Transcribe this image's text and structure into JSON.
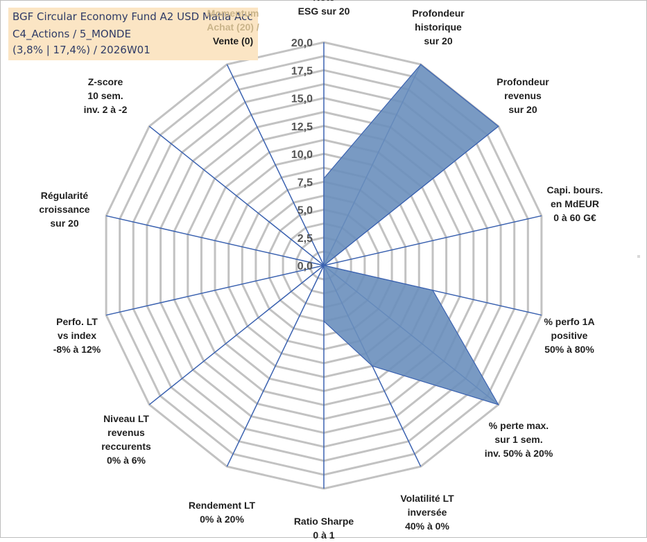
{
  "title": {
    "line1": "BGF Circular Economy Fund A2 USD Matla Acc",
    "line2": "C4_Actions / 5_MONDE",
    "line3": "(3,8% | 17,4%) / 2026W01"
  },
  "chart_data": {
    "type": "radar",
    "rmin": 0,
    "rmax": 20,
    "ticks": [
      "0,0",
      "2,5",
      "5,0",
      "7,5",
      "10,0",
      "12,5",
      "15,0",
      "17,5",
      "20,0"
    ],
    "tick_values": [
      0,
      2.5,
      5,
      7.5,
      10,
      12.5,
      15,
      17.5,
      20
    ],
    "grid_step": 1.25,
    "fill_color": "#6a8fbd",
    "stroke_color": "#3b62b0",
    "grid_color": "#c2c2c2",
    "spoke_color": "#3b62b0",
    "axes": [
      {
        "label_lines": [
          "Note",
          "ESG sur 20"
        ],
        "value": 7.8
      },
      {
        "label_lines": [
          "Profondeur",
          "historique",
          "sur 20"
        ],
        "value": 20
      },
      {
        "label_lines": [
          "Profondeur",
          "revenus",
          "sur 20"
        ],
        "value": 20
      },
      {
        "label_lines": [
          "Capi. bours.",
          "en MdEUR",
          "0 à 60 G€"
        ],
        "value": 0
      },
      {
        "label_lines": [
          "% perfo 1A",
          "positive",
          "50% à 80%"
        ],
        "value": 10
      },
      {
        "label_lines": [
          "% perte max.",
          "sur 1 sem.",
          "inv. 50% à 20%"
        ],
        "value": 20
      },
      {
        "label_lines": [
          "Volatilité LT",
          "inversée",
          "40% à 0%"
        ],
        "value": 10
      },
      {
        "label_lines": [
          "Ratio Sharpe",
          "0 à 1"
        ],
        "value": 5
      },
      {
        "label_lines": [
          "Rendement LT",
          "0% à 20%"
        ],
        "value": 0
      },
      {
        "label_lines": [
          "Niveau LT",
          "revenus",
          "reccurents",
          "0% à 6%"
        ],
        "value": 0
      },
      {
        "label_lines": [
          "Perfo. LT",
          "vs index",
          "-8% à 12%"
        ],
        "value": 0
      },
      {
        "label_lines": [
          "Régularité",
          "croissance",
          "sur 20"
        ],
        "value": 3.5
      },
      {
        "label_lines": [
          "Z-score",
          "10 sem.",
          "inv. 2 à -2"
        ],
        "value": 0
      },
      {
        "label_lines": [
          "Momentum",
          "Achat (20) /",
          "Vente (0)"
        ],
        "value": 0
      }
    ]
  }
}
